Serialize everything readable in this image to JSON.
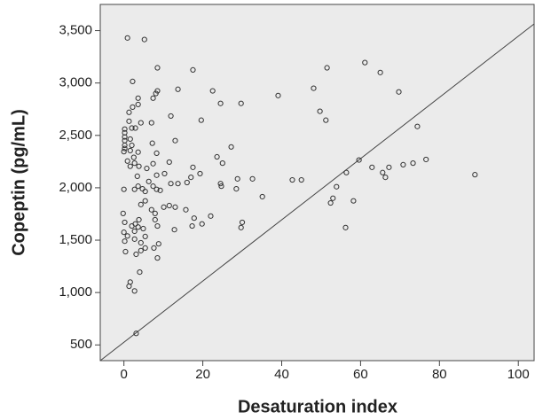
{
  "chart_data": {
    "type": "scatter",
    "x_label": "Desaturation index",
    "y_label": "Copeptin (pg/mL)",
    "color": "#333333",
    "xlim": [
      -6,
      104
    ],
    "ylim": [
      350,
      3750
    ],
    "xticks": [
      0,
      20,
      40,
      60,
      80,
      100
    ],
    "yticks": [
      500,
      {
        "value": 1000,
        "label": "1,000"
      },
      {
        "value": 1500,
        "label": "1,500"
      },
      {
        "value": 2000,
        "label": "2,000"
      },
      {
        "value": 2500,
        "label": "2,500"
      },
      {
        "value": 3000,
        "label": "3,000"
      },
      {
        "value": 3500,
        "label": "3,500"
      }
    ],
    "x": [
      0.9,
      5.2,
      2.2,
      8.5,
      17.5,
      3.6,
      3.6,
      7.4,
      8.1,
      8.5,
      13.7,
      22.5,
      24.5,
      29.7,
      39.1,
      48.1,
      51.5,
      61.1,
      65.0,
      69.7,
      49.7,
      51.2,
      74.4,
      1.3,
      2.2,
      1.3,
      2.0,
      2.9,
      4.3,
      7.0,
      11.9,
      19.6,
      7.2,
      13.0,
      0.2,
      0.2,
      0.2,
      0.2,
      0.2,
      0.2,
      0.0,
      1.6,
      2.0,
      1.6,
      2.5,
      0.9,
      1.6,
      2.7,
      3.6,
      3.8,
      3.4,
      5.8,
      8.3,
      7.4,
      8.3,
      10.3,
      11.5,
      17.5,
      0.0,
      2.7,
      3.6,
      4.7,
      5.4,
      7.4,
      8.3,
      9.2,
      6.3,
      11.9,
      13.7,
      16.0,
      17.0,
      19.3,
      24.5,
      24.7,
      28.5,
      28.8,
      32.6,
      35.1,
      42.7,
      45.0,
      53.0,
      53.9,
      52.4,
      56.4,
      59.6,
      58.2,
      56.2,
      62.9,
      65.6,
      67.2,
      66.3,
      70.8,
      73.3,
      76.6,
      89.0,
      22.0,
      29.7,
      30.0,
      23.6,
      27.2,
      25.0,
      -0.2,
      0.2,
      0.0,
      0.9,
      0.2,
      0.4,
      2.7,
      2.0,
      2.9,
      3.8,
      3.6,
      2.7,
      4.9,
      4.3,
      5.4,
      4.3,
      5.4,
      7.0,
      7.9,
      7.9,
      8.5,
      8.8,
      7.6,
      8.5,
      4.3,
      3.1,
      5.4,
      10.1,
      11.5,
      13.0,
      12.8,
      15.7,
      17.3,
      17.8,
      19.8,
      1.3,
      1.6,
      2.7,
      4.0,
      3.1
    ],
    "values": [
      3430,
      3415,
      3015,
      3145,
      3125,
      2855,
      2795,
      2855,
      2900,
      2925,
      2940,
      2925,
      2805,
      2805,
      2880,
      2950,
      3145,
      3195,
      3100,
      2915,
      2730,
      2645,
      2585,
      2720,
      2770,
      2635,
      2570,
      2570,
      2620,
      2620,
      2685,
      2645,
      2425,
      2450,
      2560,
      2525,
      2485,
      2450,
      2405,
      2375,
      2345,
      2465,
      2405,
      2355,
      2290,
      2255,
      2205,
      2235,
      2340,
      2205,
      2110,
      2185,
      2330,
      2230,
      2120,
      2135,
      2245,
      2195,
      1985,
      1985,
      2015,
      1990,
      1965,
      2015,
      1985,
      1975,
      2060,
      2040,
      2040,
      2050,
      2100,
      2135,
      2040,
      2015,
      1990,
      2085,
      2085,
      1915,
      2075,
      2075,
      1900,
      2010,
      1855,
      2145,
      2265,
      1875,
      1620,
      2195,
      2145,
      2195,
      2100,
      2220,
      2235,
      2270,
      2125,
      1730,
      1620,
      1670,
      2295,
      2390,
      2235,
      1755,
      1670,
      1575,
      1540,
      1490,
      1390,
      1510,
      1635,
      1655,
      1695,
      1625,
      1585,
      1610,
      1475,
      1535,
      1840,
      1875,
      1790,
      1755,
      1695,
      1635,
      1465,
      1425,
      1330,
      1400,
      1365,
      1425,
      1815,
      1830,
      1815,
      1600,
      1790,
      1635,
      1710,
      1655,
      1060,
      1100,
      1015,
      1195,
      610
    ]
  }
}
